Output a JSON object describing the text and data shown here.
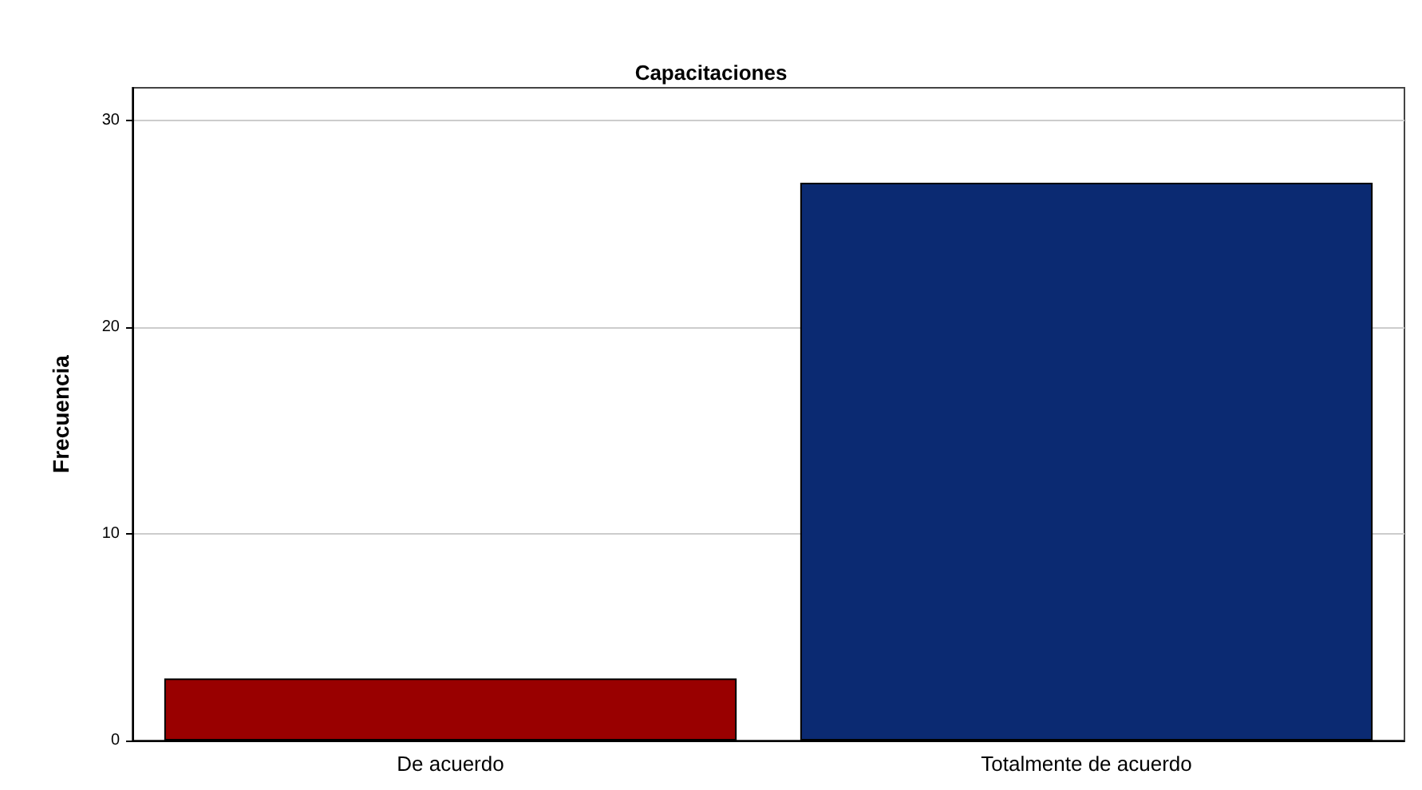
{
  "chart_data": {
    "type": "bar",
    "title": "Capacitaciones",
    "ylabel": "Frecuencia",
    "categories": [
      "De acuerdo",
      "Totalmente de acuerdo"
    ],
    "values": [
      3,
      27
    ],
    "colors": [
      "#990000",
      "#0b2a72"
    ],
    "ylim": [
      0,
      31.6
    ],
    "yticks": [
      0,
      10,
      20,
      30
    ],
    "grid": "y"
  }
}
